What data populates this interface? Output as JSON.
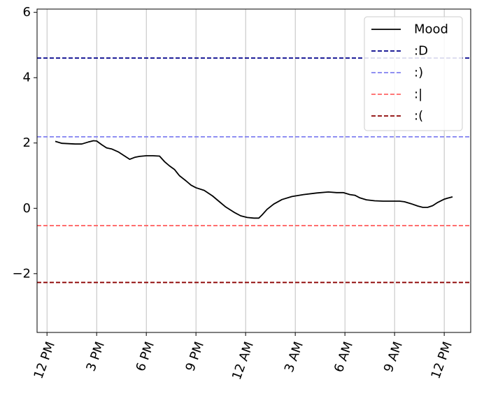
{
  "chart_data": {
    "type": "line",
    "title": "",
    "xlabel": "",
    "ylabel": "",
    "x_unit": "hours from 12 PM",
    "xlim": [
      -0.6,
      25.6
    ],
    "ylim": [
      -3.8,
      6.1
    ],
    "grid": "x-only",
    "legend_position": "top-right",
    "x_ticks": [
      {
        "x": 0,
        "label": "12 PM"
      },
      {
        "x": 3,
        "label": "3 PM"
      },
      {
        "x": 6,
        "label": "6 PM"
      },
      {
        "x": 9,
        "label": "9 PM"
      },
      {
        "x": 12,
        "label": "12 AM"
      },
      {
        "x": 15,
        "label": "3 AM"
      },
      {
        "x": 18,
        "label": "6 AM"
      },
      {
        "x": 21,
        "label": "9 AM"
      },
      {
        "x": 24,
        "label": "12 PM"
      }
    ],
    "y_ticks": [
      {
        "y": -2,
        "label": "−2"
      },
      {
        "y": 0,
        "label": "0"
      },
      {
        "y": 2,
        "label": "2"
      },
      {
        "y": 4,
        "label": "4"
      },
      {
        "y": 6,
        "label": "6"
      }
    ],
    "series": [
      {
        "name": "Mood",
        "color": "#000000",
        "style": "solid",
        "x": [
          0.5,
          0.9,
          1.3,
          1.7,
          2.1,
          2.5,
          2.8,
          3.0,
          3.3,
          3.6,
          3.9,
          4.3,
          4.7,
          5.0,
          5.3,
          5.6,
          6.0,
          6.4,
          6.8,
          7.1,
          7.4,
          7.7,
          8.0,
          8.4,
          8.7,
          9.0,
          9.5,
          10.0,
          10.4,
          10.8,
          11.3,
          11.7,
          12.1,
          12.5,
          12.8,
          13.0,
          13.3,
          13.7,
          14.2,
          14.8,
          15.5,
          16.3,
          17.0,
          17.5,
          17.9,
          18.3,
          18.6,
          18.9,
          19.3,
          19.8,
          20.3,
          20.8,
          21.3,
          21.6,
          22.0,
          22.4,
          22.7,
          23.0,
          23.3,
          23.6,
          24.0,
          24.2,
          24.5
        ],
        "y": [
          2.05,
          1.99,
          1.98,
          1.97,
          1.97,
          2.03,
          2.07,
          2.06,
          1.95,
          1.85,
          1.82,
          1.73,
          1.6,
          1.5,
          1.56,
          1.59,
          1.61,
          1.61,
          1.6,
          1.43,
          1.3,
          1.19,
          1.0,
          0.84,
          0.71,
          0.63,
          0.55,
          0.38,
          0.21,
          0.04,
          -0.12,
          -0.23,
          -0.28,
          -0.3,
          -0.3,
          -0.2,
          -0.03,
          0.13,
          0.27,
          0.36,
          0.42,
          0.47,
          0.5,
          0.48,
          0.48,
          0.42,
          0.4,
          0.32,
          0.26,
          0.23,
          0.22,
          0.22,
          0.22,
          0.2,
          0.14,
          0.07,
          0.03,
          0.03,
          0.08,
          0.18,
          0.28,
          0.31,
          0.35
        ]
      },
      {
        "name": ":D",
        "color": "#00008b",
        "style": "dashed",
        "y": 4.6
      },
      {
        "name": ":)",
        "color": "#8080f0",
        "style": "dashed",
        "y": 2.19
      },
      {
        "name": ":|",
        "color": "#ff6666",
        "style": "dashed",
        "y": -0.53
      },
      {
        "name": ":(",
        "color": "#8b0000",
        "style": "dashed",
        "y": -2.27
      }
    ]
  }
}
